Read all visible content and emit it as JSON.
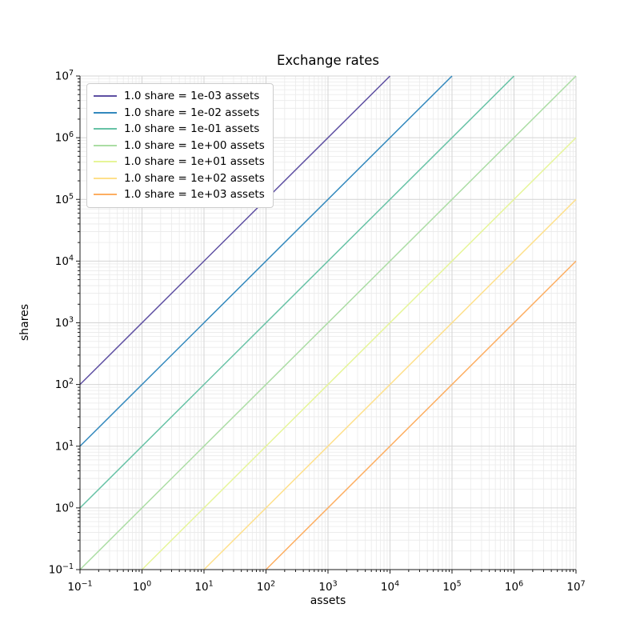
{
  "window": {
    "background": "#ffffff"
  },
  "chart_data": {
    "type": "line",
    "title": "Exchange rates",
    "xlabel": "assets",
    "ylabel": "shares",
    "xscale": "log",
    "yscale": "log",
    "xlim": [
      0.1,
      10000000
    ],
    "ylim": [
      0.1,
      10000000
    ],
    "x_tick_exponents": [
      -1,
      0,
      1,
      2,
      3,
      4,
      5,
      6,
      7
    ],
    "y_tick_exponents": [
      -1,
      0,
      1,
      2,
      3,
      4,
      5,
      6,
      7
    ],
    "grid": {
      "major": true,
      "minor": true
    },
    "legend": {
      "position": "upper-left"
    },
    "series": [
      {
        "label": "1.0 share = 1e-03 assets",
        "assets_per_share": 0.001,
        "color": "#5e4fa2",
        "points": [
          [
            0.1,
            100
          ],
          [
            10000,
            10000000
          ]
        ]
      },
      {
        "label": "1.0 share = 1e-02 assets",
        "assets_per_share": 0.01,
        "color": "#3288bd",
        "points": [
          [
            0.1,
            10
          ],
          [
            100000,
            10000000
          ]
        ]
      },
      {
        "label": "1.0 share = 1e-01 assets",
        "assets_per_share": 0.1,
        "color": "#66c2a5",
        "points": [
          [
            0.1,
            1
          ],
          [
            1000000,
            10000000
          ]
        ]
      },
      {
        "label": "1.0 share = 1e+00 assets",
        "assets_per_share": 1,
        "color": "#abdda4",
        "points": [
          [
            0.1,
            0.1
          ],
          [
            10000000,
            10000000
          ]
        ]
      },
      {
        "label": "1.0 share = 1e+01 assets",
        "assets_per_share": 10,
        "color": "#e6f598",
        "points": [
          [
            1,
            0.1
          ],
          [
            10000000,
            1000000
          ]
        ]
      },
      {
        "label": "1.0 share = 1e+02 assets",
        "assets_per_share": 100,
        "color": "#fee08b",
        "points": [
          [
            10,
            0.1
          ],
          [
            10000000,
            100000
          ]
        ]
      },
      {
        "label": "1.0 share = 1e+03 assets",
        "assets_per_share": 1000,
        "color": "#fdae61",
        "points": [
          [
            100,
            0.1
          ],
          [
            10000000,
            10000
          ]
        ]
      }
    ]
  },
  "style": {
    "spine_color": "#1a1a1a",
    "tick_color": "#1a1a1a",
    "text_color": "#000000",
    "grid_major_color": "#d4d4d4",
    "grid_minor_color": "#eaeaea",
    "legend_border_color": "#cccccc",
    "legend_background": "#ffffff",
    "line_width": 1.5
  }
}
